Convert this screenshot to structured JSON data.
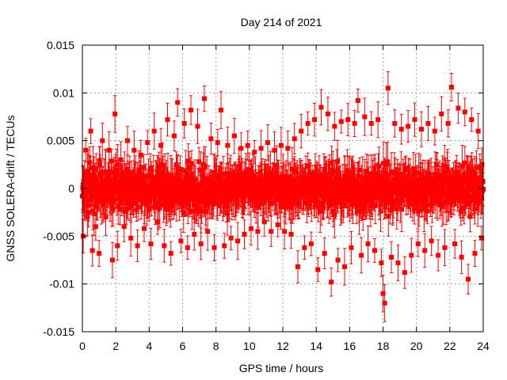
{
  "chart_data": {
    "type": "scatter",
    "title": "Day 214 of 2021",
    "xlabel": "GPS time / hours",
    "ylabel": "GNSS SOLERA-drift / TECUs",
    "xlim": [
      0,
      24
    ],
    "ylim": [
      -0.015,
      0.015
    ],
    "xticks": [
      0,
      2,
      4,
      6,
      8,
      10,
      12,
      14,
      16,
      18,
      20,
      22,
      24
    ],
    "yticks": [
      -0.015,
      -0.01,
      -0.005,
      0,
      0.005,
      0.01,
      0.015
    ],
    "ytick_labels": [
      "-0.015",
      "-0.01",
      "-0.005",
      "0",
      "0.005",
      "0.01",
      "0.015"
    ],
    "grid": true,
    "marker": "square",
    "error_bars": true,
    "colors": {
      "series": "#ff0000",
      "grid": "#a0a0a0"
    },
    "series": [
      {
        "x": [
          0.05,
          0.2,
          0.3,
          0.5,
          0.6,
          0.7,
          0.8,
          1.0,
          1.2,
          1.4,
          1.6,
          1.8,
          1.95,
          2.1,
          2.3,
          2.5,
          2.7,
          2.9,
          3.1,
          3.3,
          3.5,
          3.7,
          3.9,
          4.1,
          4.3,
          4.5,
          4.7,
          4.9,
          5.1,
          5.3,
          5.5,
          5.7,
          5.9,
          6.1,
          6.3,
          6.5,
          6.7,
          6.9,
          7.1,
          7.3,
          7.5,
          7.7,
          7.9,
          8.1,
          8.3,
          8.5,
          8.7,
          8.9,
          9.1,
          9.3,
          9.5,
          9.7,
          9.9,
          10.1,
          10.3,
          10.5,
          10.7,
          10.9,
          11.1,
          11.3,
          11.5,
          11.7,
          11.9,
          12.1,
          12.3,
          12.5,
          12.7,
          12.9,
          13.1,
          13.3,
          13.5,
          13.7,
          13.9,
          14.1,
          14.3,
          14.5,
          14.7,
          14.9,
          15.1,
          15.3,
          15.5,
          15.7,
          15.9,
          16.1,
          16.3,
          16.5,
          16.7,
          16.9,
          17.1,
          17.3,
          17.5,
          17.7,
          17.9,
          18.0,
          18.1,
          18.3,
          18.5,
          18.7,
          18.9,
          19.1,
          19.3,
          19.5,
          19.7,
          19.9,
          20.1,
          20.3,
          20.5,
          20.7,
          20.9,
          21.1,
          21.3,
          21.5,
          21.7,
          21.9,
          22.1,
          22.3,
          22.5,
          22.7,
          22.9,
          23.1,
          23.3,
          23.5,
          23.7,
          23.9
        ],
        "y": [
          -0.005,
          0.004,
          -0.003,
          0.006,
          -0.0065,
          0.002,
          -0.004,
          -0.0068,
          0.005,
          -0.003,
          0.004,
          -0.0075,
          0.0078,
          -0.006,
          0.003,
          -0.004,
          0.005,
          -0.0052,
          0.004,
          -0.006,
          0.0035,
          -0.0042,
          0.0048,
          -0.0058,
          0.006,
          -0.0035,
          0.0045,
          -0.006,
          0.0072,
          -0.0068,
          0.0055,
          0.009,
          -0.0055,
          0.0068,
          -0.0062,
          0.0082,
          -0.0048,
          0.0065,
          -0.0058,
          0.0094,
          -0.0045,
          0.0052,
          -0.0062,
          0.0048,
          0.0082,
          -0.006,
          0.0045,
          -0.0052,
          0.0055,
          -0.0055,
          0.0042,
          -0.0048,
          0.0045,
          -0.0042,
          0.0038,
          -0.0045,
          0.0042,
          -0.0035,
          0.0048,
          -0.0045,
          0.004,
          -0.0038,
          0.0045,
          -0.0045,
          0.0042,
          -0.0048,
          0.0052,
          -0.0082,
          0.006,
          -0.0062,
          0.0068,
          -0.0058,
          0.0072,
          -0.0085,
          0.0085,
          -0.0068,
          0.0078,
          -0.0098,
          0.0065,
          -0.0075,
          0.007,
          -0.0082,
          0.0072,
          -0.0062,
          0.0068,
          0.0092,
          -0.007,
          0.0075,
          -0.0058,
          0.0068,
          -0.0065,
          0.0072,
          -0.0078,
          -0.011,
          -0.012,
          0.0105,
          -0.0072,
          0.0068,
          -0.0078,
          0.0062,
          -0.0088,
          0.0065,
          -0.007,
          0.0072,
          -0.0058,
          0.0062,
          -0.0065,
          0.0068,
          -0.0055,
          0.006,
          -0.007,
          0.0078,
          -0.0062,
          0.0068,
          0.0106,
          -0.0058,
          0.0084,
          -0.0072,
          0.008,
          -0.0095,
          0.0072,
          -0.0068,
          0.006,
          -0.0052
        ],
        "noise_sd": 0.0022
      }
    ]
  }
}
